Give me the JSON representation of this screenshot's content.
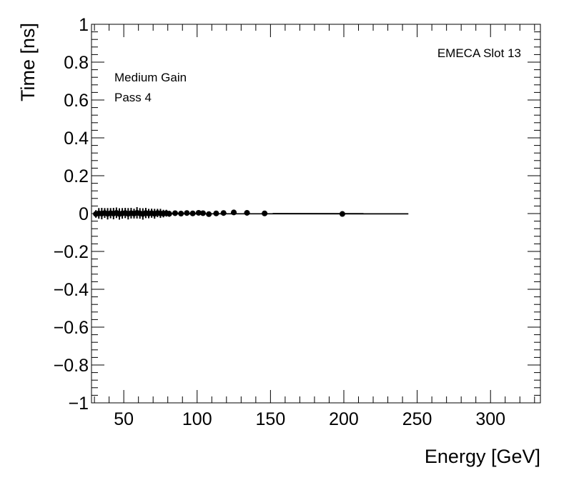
{
  "chart_data": {
    "type": "scatter",
    "xlabel": "Energy [GeV]",
    "ylabel": "Time [ns]",
    "xlim": [
      28,
      334
    ],
    "ylim": [
      -1,
      1
    ],
    "xticks": [
      50,
      100,
      150,
      200,
      250,
      300
    ],
    "yticks": [
      -1,
      -0.8,
      -0.6,
      -0.4,
      -0.2,
      0,
      0.2,
      0.4,
      0.6,
      0.8,
      1
    ],
    "ytick_labels": [
      "−1",
      "−0.8",
      "−0.6",
      "−0.4",
      "−0.2",
      "0",
      "0.2",
      "0.4",
      "0.6",
      "0.8",
      "1"
    ],
    "annotations": {
      "top_right": "EMECA Slot 13",
      "line1": "Medium Gain",
      "line2": "Pass 4"
    },
    "fit_line": {
      "x": [
        30,
        244
      ],
      "y": [
        0.0,
        -0.001
      ]
    },
    "points": [
      {
        "x": 31,
        "y": -0.002,
        "err": 0.02
      },
      {
        "x": 33,
        "y": 0.001,
        "err": 0.028
      },
      {
        "x": 35,
        "y": 0.0,
        "err": 0.03
      },
      {
        "x": 37,
        "y": 0.003,
        "err": 0.026
      },
      {
        "x": 39,
        "y": -0.001,
        "err": 0.03
      },
      {
        "x": 41,
        "y": 0.002,
        "err": 0.027
      },
      {
        "x": 43,
        "y": 0.0,
        "err": 0.03
      },
      {
        "x": 45,
        "y": 0.004,
        "err": 0.028
      },
      {
        "x": 47,
        "y": -0.002,
        "err": 0.03
      },
      {
        "x": 49,
        "y": 0.001,
        "err": 0.028
      },
      {
        "x": 51,
        "y": 0.003,
        "err": 0.027
      },
      {
        "x": 53,
        "y": -0.001,
        "err": 0.03
      },
      {
        "x": 55,
        "y": 0.002,
        "err": 0.028
      },
      {
        "x": 57,
        "y": 0.0,
        "err": 0.026
      },
      {
        "x": 59,
        "y": 0.004,
        "err": 0.03
      },
      {
        "x": 61,
        "y": 0.001,
        "err": 0.028
      },
      {
        "x": 63,
        "y": -0.002,
        "err": 0.03
      },
      {
        "x": 65,
        "y": 0.003,
        "err": 0.027
      },
      {
        "x": 67,
        "y": 0.0,
        "err": 0.025
      },
      {
        "x": 69,
        "y": 0.002,
        "err": 0.024
      },
      {
        "x": 71,
        "y": -0.001,
        "err": 0.026
      },
      {
        "x": 73,
        "y": 0.003,
        "err": 0.022
      },
      {
        "x": 75,
        "y": 0.001,
        "err": 0.024
      },
      {
        "x": 77,
        "y": 0.0,
        "err": 0.02
      },
      {
        "x": 79,
        "y": 0.002,
        "err": 0.018
      },
      {
        "x": 81,
        "y": -0.001,
        "err": 0.016
      },
      {
        "x": 85,
        "y": 0.002,
        "err": 0.014
      },
      {
        "x": 89,
        "y": 0.0,
        "err": 0.013
      },
      {
        "x": 93,
        "y": 0.003,
        "err": 0.012
      },
      {
        "x": 97,
        "y": 0.001,
        "err": 0.01
      },
      {
        "x": 101,
        "y": 0.004,
        "err": 0.011
      },
      {
        "x": 104,
        "y": 0.002,
        "err": 0.009
      },
      {
        "x": 108,
        "y": -0.003,
        "err": 0.009
      },
      {
        "x": 113,
        "y": 0.001,
        "err": 0.008
      },
      {
        "x": 118,
        "y": 0.003,
        "err": 0.007
      },
      {
        "x": 125,
        "y": 0.006,
        "err": 0.006
      },
      {
        "x": 134,
        "y": 0.004,
        "err": 0.005
      },
      {
        "x": 146,
        "y": 0.001,
        "err": 0.005
      },
      {
        "x": 199,
        "y": -0.002,
        "err": 0.004
      }
    ]
  }
}
